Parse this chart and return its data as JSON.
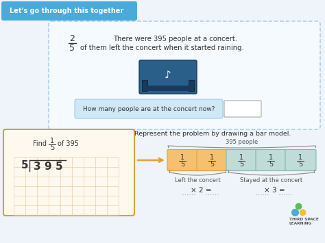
{
  "bg_color": "#eef4f9",
  "title_bg": "#4aabdb",
  "title_text": "Let's go through this together",
  "title_color": "#ffffff",
  "dashed_box_color": "#a0c8e8",
  "problem_text_line1": "There were 395 people at a concert.",
  "problem_text_line2": "of them left the concert when it started raining.",
  "fraction_num": "2",
  "fraction_den": "5",
  "question_text": "How many people are at the concert now?",
  "question_bg": "#d0e8f5",
  "represent_text": "Represent the problem by drawing a bar model.",
  "bar_label": "395 people",
  "left_label": "Left the concert",
  "right_label": "Stayed at the concert",
  "orange_border": "#e8a030",
  "orange_fill": "#f5c070",
  "teal_border": "#80b8b0",
  "teal_fill": "#c0dcd8",
  "arrow_color": "#e8a030",
  "grid_box_bg": "#fff8ef",
  "grid_box_border": "#d4a040",
  "find_text": "Find",
  "find_frac_num": "1",
  "find_frac_den": "5",
  "find_of": "of 395",
  "x2_text": "× 2 =",
  "x3_text": "× 3 =",
  "logo_colors": [
    "#4aabdb",
    "#f0c030",
    "#60b860"
  ],
  "logo_text1": "THIRD SPACE",
  "logo_text2": "LEARNING",
  "brace_color": "#888888",
  "grid_line_color": "#e8d0a0",
  "text_dark": "#333333",
  "text_mid": "#555555"
}
